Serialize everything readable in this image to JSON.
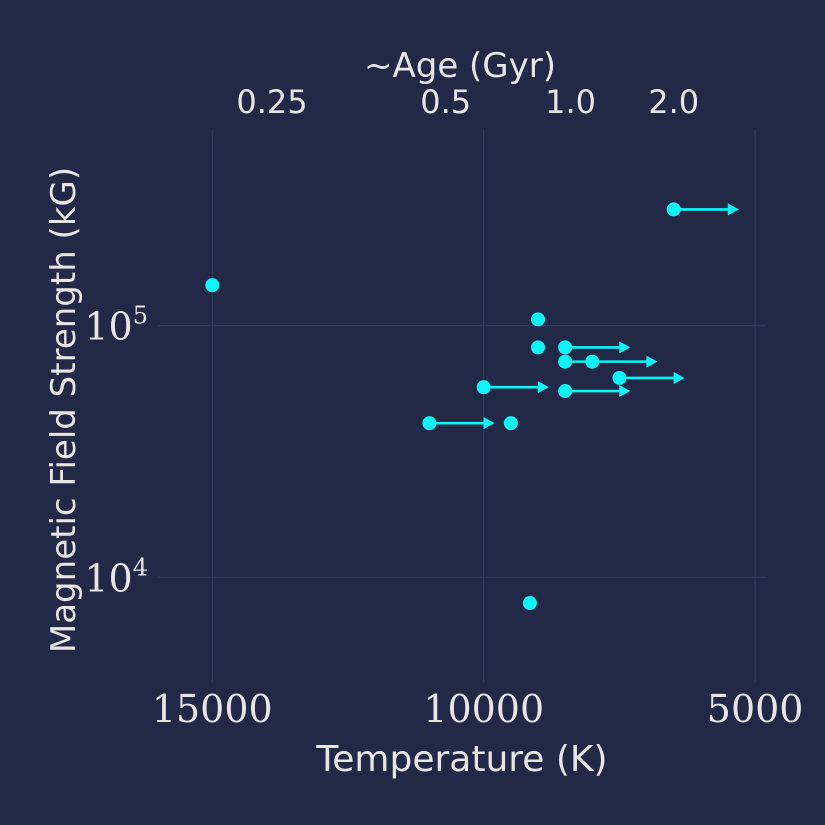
{
  "chart_data": {
    "type": "scatter",
    "title": "",
    "xlabel": "Temperature (K)",
    "ylabel": "Magnetic Field Strength (kG)",
    "top_xlabel": "~Age (Gyr)",
    "x_axis_reversed": true,
    "xlim": [
      16000,
      4800
    ],
    "y_scale": "log",
    "ylim": [
      3800,
      600000
    ],
    "grid": true,
    "x_ticks": [
      {
        "value": 15000,
        "label": "15000"
      },
      {
        "value": 10000,
        "label": "10000"
      },
      {
        "value": 5000,
        "label": "5000"
      }
    ],
    "y_ticks": [
      {
        "value": 10000,
        "base": "10",
        "exp": "4"
      },
      {
        "value": 100000,
        "base": "10",
        "exp": "5"
      }
    ],
    "top_ticks": [
      {
        "temperature": 13900,
        "label": "0.25"
      },
      {
        "temperature": 10700,
        "label": "0.5"
      },
      {
        "temperature": 8400,
        "label": "1.0"
      },
      {
        "temperature": 6500,
        "label": "2.0"
      }
    ],
    "marker_color": "#08F7FE",
    "points": [
      {
        "x": 15000,
        "y": 145000
      },
      {
        "x": 9000,
        "y": 106000
      },
      {
        "x": 9000,
        "y": 82000
      },
      {
        "x": 8000,
        "y": 72000
      },
      {
        "x": 9500,
        "y": 41000
      },
      {
        "x": 9150,
        "y": 7900
      }
    ],
    "lower_limits": [
      {
        "x": 6500,
        "y": 290000,
        "x_to": 5300
      },
      {
        "x": 8500,
        "y": 82000,
        "x_to": 7300
      },
      {
        "x": 8500,
        "y": 72000,
        "x_to": 6800
      },
      {
        "x": 7500,
        "y": 62000,
        "x_to": 6300
      },
      {
        "x": 10000,
        "y": 57000,
        "x_to": 8800
      },
      {
        "x": 8500,
        "y": 55000,
        "x_to": 7300
      },
      {
        "x": 11000,
        "y": 41000,
        "x_to": 9800
      }
    ]
  }
}
